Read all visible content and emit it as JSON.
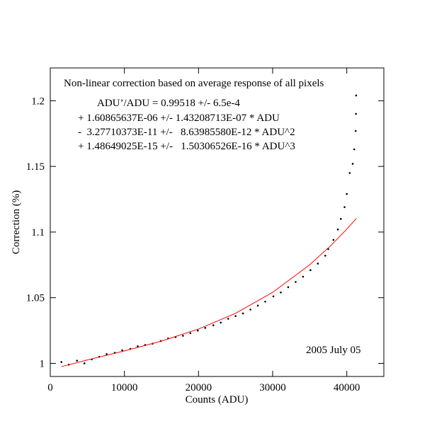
{
  "chart_data": {
    "type": "scatter",
    "xlabel": "Counts (ADU)",
    "ylabel": "Correction (%)",
    "annotations": [
      "Non-linear correction based on average response of all pixels",
      "ADU’/ADU = 0.99518 +/- 6.5e-4",
      "+ 1.60865637E-06 +/- 1.43208713E-07 * ADU",
      "-  3.27710373E-11 +/-   8.63985580E-12 * ADU^2",
      "+ 1.48649025E-15 +/-   1.50306526E-16 * ADU^3",
      "2005 July 05"
    ],
    "xlim": [
      0,
      45000
    ],
    "ylim": [
      0.99,
      1.225
    ],
    "xticks": [
      0,
      10000,
      20000,
      30000,
      40000
    ],
    "yticks": [
      1,
      1.05,
      1.1,
      1.15,
      1.2
    ],
    "series": [
      {
        "style": "markers",
        "color": "#000000",
        "x": [
          1500,
          2500,
          3600,
          4600,
          5600,
          6600,
          7600,
          8700,
          9700,
          10800,
          11800,
          12800,
          13800,
          14900,
          15900,
          16900,
          17900,
          18900,
          19900,
          20900,
          22000,
          23000,
          24000,
          25000,
          26000,
          27000,
          28000,
          29000,
          30100,
          31100,
          32100,
          33100,
          34100,
          35100,
          36100,
          37100,
          37500,
          38200,
          38800,
          39200,
          39700,
          40000,
          40400,
          40800,
          41000,
          41200
        ],
        "values": [
          1.001,
          0.999,
          1.002,
          1.0,
          1.003,
          1.005,
          1.007,
          1.008,
          1.01,
          1.011,
          1.013,
          1.014,
          1.015,
          1.017,
          1.019,
          1.02,
          1.021,
          1.023,
          1.025,
          1.027,
          1.029,
          1.031,
          1.034,
          1.036,
          1.038,
          1.041,
          1.044,
          1.047,
          1.051,
          1.054,
          1.058,
          1.062,
          1.066,
          1.071,
          1.076,
          1.082,
          1.087,
          1.094,
          1.102,
          1.11,
          1.119,
          1.129,
          1.145,
          1.152,
          1.163,
          1.177
        ]
      },
      {
        "style": "markers",
        "color": "#000000",
        "x": [
          41240,
          41260
        ],
        "values": [
          1.19,
          1.204
        ]
      },
      {
        "style": "line",
        "color": "#ff0000",
        "x": [
          1500,
          5000,
          10000,
          15000,
          20000,
          25000,
          30000,
          35000,
          38000,
          40000,
          41300
        ],
        "values": [
          0.99752,
          1.00259,
          1.00948,
          1.01696,
          1.02614,
          1.03814,
          1.05408,
          1.07507,
          1.09055,
          1.1022,
          1.11044
        ]
      }
    ]
  }
}
